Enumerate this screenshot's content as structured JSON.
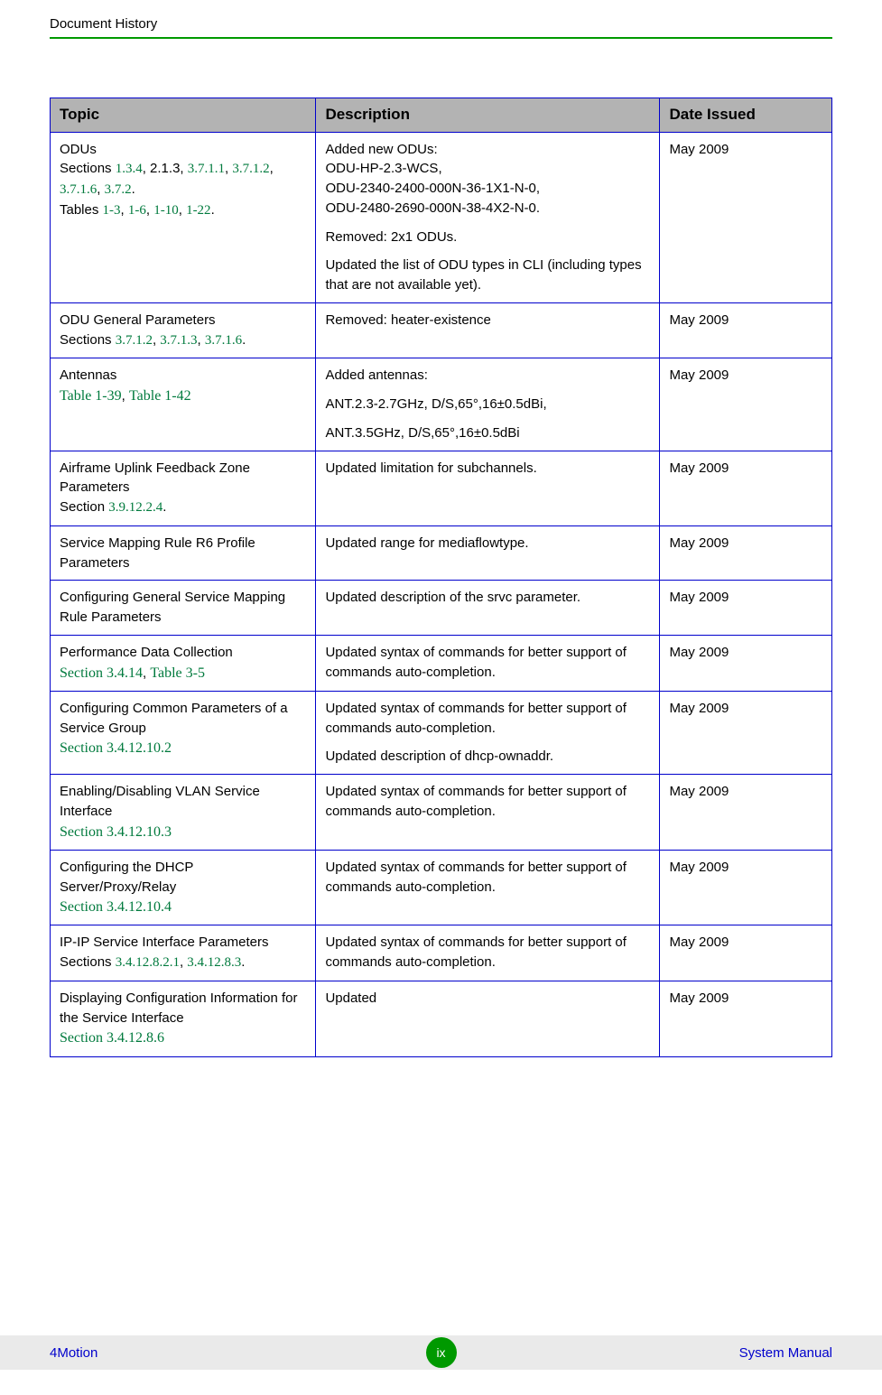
{
  "header": {
    "title": "Document History"
  },
  "table": {
    "columns": [
      "Topic",
      "Description",
      "Date Issued"
    ],
    "rows": [
      {
        "topic_plain": "ODUs",
        "topic_line2_pre": "Sections ",
        "topic_links2": [
          "1.3.4",
          "2.1.3_PLAIN",
          "3.7.1.1",
          "3.7.1.2",
          "3.7.1.6",
          "3.7.2"
        ],
        "topic_line3_pre": "Tables ",
        "topic_links3": [
          "1-3",
          "1-6",
          "1-10",
          "1-22"
        ],
        "desc_paras": [
          "Added new ODUs:\nODU-HP-2.3-WCS,\nODU-2340-2400-000N-36-1X1-N-0,\nODU-2480-2690-000N-38-4X2-N-0.",
          "Removed: 2x1 ODUs.",
          "Updated the list of ODU types in CLI (including types that are not available yet)."
        ],
        "date": "May 2009"
      },
      {
        "topic_plain": "ODU General Parameters",
        "topic_line2_pre": "Sections ",
        "topic_links2": [
          "3.7.1.2",
          "3.7.1.3",
          "3.7.1.6"
        ],
        "desc_paras": [
          "Removed: heater-existence"
        ],
        "date": "May 2009"
      },
      {
        "topic_plain": "Antennas",
        "topic_serif_links": [
          "Table 1-39",
          "Table 1-42"
        ],
        "desc_paras": [
          "Added antennas:",
          "ANT.2.3-2.7GHz, D/S,65°,16±0.5dBi,",
          "ANT.3.5GHz, D/S,65°,16±0.5dBi"
        ],
        "date": "May 2009"
      },
      {
        "topic_plain": "Airframe Uplink Feedback Zone Parameters",
        "topic_line2_pre": "Section ",
        "topic_links2": [
          "3.9.12.2.4"
        ],
        "desc_paras": [
          "Updated limitation for subchannels."
        ],
        "date": "May 2009"
      },
      {
        "topic_plain": "Service Mapping Rule R6 Profile Parameters",
        "desc_paras": [
          "Updated range for mediaflowtype."
        ],
        "date": "May 2009"
      },
      {
        "topic_plain": "Configuring General Service Mapping Rule Parameters",
        "desc_paras": [
          "Updated description of the srvc parameter."
        ],
        "date": "May 2009"
      },
      {
        "topic_plain": "Performance Data Collection",
        "topic_serif_links": [
          "Section 3.4.14",
          "Table 3-5"
        ],
        "desc_paras": [
          "Updated syntax of commands for better support of commands auto-completion."
        ],
        "date": "May 2009"
      },
      {
        "topic_plain": "Configuring Common Parameters of a Service Group",
        "topic_serif_links": [
          "Section 3.4.12.10.2"
        ],
        "desc_paras": [
          "Updated syntax of commands for better support of commands auto-completion.",
          "Updated description of dhcp-ownaddr."
        ],
        "date": "May 2009"
      },
      {
        "topic_plain": "Enabling/Disabling VLAN Service Interface",
        "topic_serif_links": [
          "Section 3.4.12.10.3"
        ],
        "desc_paras": [
          "Updated syntax of commands for better support of commands auto-completion."
        ],
        "date": "May 2009"
      },
      {
        "topic_plain": "Configuring the DHCP Server/Proxy/Relay",
        "topic_serif_links": [
          "Section 3.4.12.10.4"
        ],
        "desc_paras": [
          "Updated syntax of commands for better support of commands auto-completion."
        ],
        "date": "May 2009"
      },
      {
        "topic_plain": "IP-IP Service Interface Parameters",
        "topic_line2_pre": "Sections ",
        "topic_links2": [
          "3.4.12.8.2.1",
          "3.4.12.8.3"
        ],
        "desc_paras": [
          "Updated syntax of commands for better support of commands auto-completion."
        ],
        "date": "May 2009"
      },
      {
        "topic_plain": "Displaying Configuration Information for the Service Interface",
        "topic_serif_links": [
          "Section 3.4.12.8.6"
        ],
        "desc_paras": [
          "Updated"
        ],
        "date": "May 2009"
      }
    ]
  },
  "footer": {
    "left": "4Motion",
    "page": "ix",
    "right": "System Manual"
  },
  "colors": {
    "link_green": "#007a3d",
    "border_blue": "#0000cc",
    "header_bg": "#b3b3b3",
    "rule_green": "#009900",
    "footer_bg": "#eaeaea",
    "footer_text": "#0000cc",
    "badge_bg": "#009900"
  }
}
